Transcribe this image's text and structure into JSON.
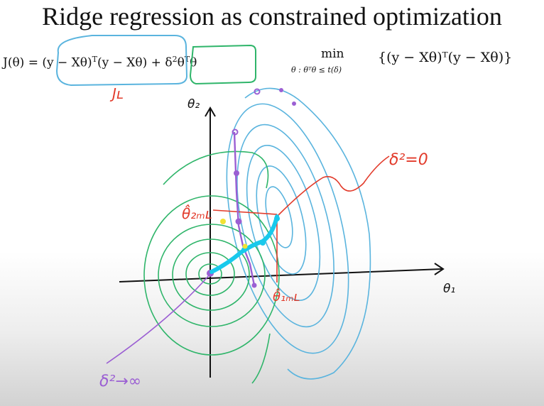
{
  "title": "Ridge regression as constrained optimization",
  "formula_left": {
    "lhs": "J(θ) = ",
    "term1": "(y − Xθ)",
    "term1_sup": "T",
    "term1b": "(y − Xθ)",
    "plus": " + ",
    "term2_a": "δ",
    "term2_sup1": "2",
    "term2_b": "θ",
    "term2_sup2": "T",
    "term2_c": "θ"
  },
  "formula_right": {
    "min": "min",
    "subscript": "θ : θᵀθ ≤ t(δ)",
    "body": "{(y − Xθ)ᵀ(y − Xθ)}"
  },
  "annotations": {
    "j_l": "Jʟ",
    "theta2_axis": "θ₂",
    "theta1_axis": "θ₁",
    "theta2_ml": "θ̂₂ₘʟ",
    "theta1_ml": "θ̂₁ₘʟ",
    "delta_zero": "δ²=0",
    "delta_inf": "δ²→∞"
  },
  "colors": {
    "blue_ink": "#5ab4de",
    "green_ink": "#2fb56a",
    "red_ink": "#e23b2b",
    "purple_ink": "#9b5fd3",
    "cyan_path": "#18c9ec",
    "yellow_dot": "#f2e233"
  }
}
